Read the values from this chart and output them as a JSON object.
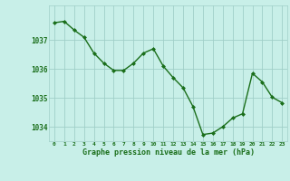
{
  "hours": [
    0,
    1,
    2,
    3,
    4,
    5,
    6,
    7,
    8,
    9,
    10,
    11,
    12,
    13,
    14,
    15,
    16,
    17,
    18,
    19,
    20,
    21,
    22,
    23
  ],
  "pressure": [
    1037.6,
    1037.65,
    1037.35,
    1037.1,
    1036.55,
    1036.2,
    1035.95,
    1035.95,
    1036.2,
    1036.55,
    1036.7,
    1036.1,
    1035.7,
    1035.35,
    1034.7,
    1033.73,
    1033.78,
    1034.0,
    1034.3,
    1034.45,
    1035.85,
    1035.55,
    1035.02,
    1034.83
  ],
  "line_color": "#1a6e1a",
  "marker_color": "#1a6e1a",
  "bg_color": "#c8efe8",
  "grid_color": "#a0cfc8",
  "xlabel": "Graphe pression niveau de la mer (hPa)",
  "xlabel_color": "#1a6e1a",
  "tick_label_color": "#1a6e1a",
  "ylim_min": 1033.5,
  "ylim_max": 1038.2,
  "yticks": [
    1034,
    1035,
    1036,
    1037
  ],
  "xticks": [
    0,
    1,
    2,
    3,
    4,
    5,
    6,
    7,
    8,
    9,
    10,
    11,
    12,
    13,
    14,
    15,
    16,
    17,
    18,
    19,
    20,
    21,
    22,
    23
  ]
}
